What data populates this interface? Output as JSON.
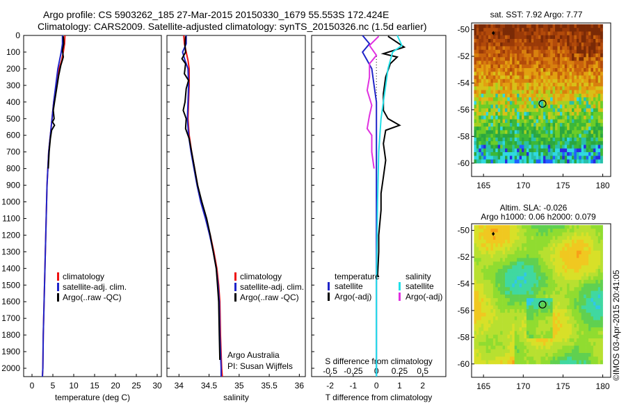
{
  "header": {
    "line1": "Argo profile: CS 5903262_185 27-Mar-2015 20150330_1679 55.553S 172.424E",
    "line2": "Climatology: CARS2009. Satellite-adjusted climatology: synTS_20150326.nc (1.5d earlier)"
  },
  "credit": "©IMOS 03-Apr-2015 20:41:05",
  "colors": {
    "red": "#ee1111",
    "blue": "#1f24c8",
    "black": "#000000",
    "cyan": "#22e0e8",
    "magenta": "#e030e0"
  },
  "chart_data": [
    {
      "id": "temperature",
      "type": "line",
      "xlabel": "temperature (deg C)",
      "ylabel": "",
      "xlim": [
        -2,
        31
      ],
      "ylim": [
        2050,
        0
      ],
      "xticks": [
        0,
        5,
        10,
        15,
        20,
        25,
        30
      ],
      "yticks": [
        0,
        100,
        200,
        300,
        400,
        500,
        600,
        700,
        800,
        900,
        1000,
        1100,
        1200,
        1300,
        1400,
        1500,
        1600,
        1700,
        1800,
        1900,
        2000
      ],
      "legend": {
        "placement": "lower-middle",
        "entries": [
          "climatology",
          "satellite-adj. clim.",
          "Argo(..raw -QC)"
        ]
      },
      "series": [
        {
          "name": "climatology",
          "color": "red",
          "points": [
            [
              7.9,
              0
            ],
            [
              7.8,
              50
            ],
            [
              7.5,
              100
            ],
            [
              7.1,
              150
            ],
            [
              6.5,
              200
            ],
            [
              5.8,
              300
            ],
            [
              5.2,
              400
            ],
            [
              4.8,
              500
            ],
            [
              4.4,
              600
            ],
            [
              4.0,
              700
            ],
            [
              3.8,
              800
            ],
            [
              3.6,
              900
            ],
            [
              3.5,
              1000
            ],
            [
              3.3,
              1200
            ],
            [
              3.1,
              1400
            ],
            [
              2.9,
              1600
            ],
            [
              2.7,
              1800
            ],
            [
              2.6,
              2000
            ],
            [
              2.5,
              2050
            ]
          ]
        },
        {
          "name": "satellite-adj. clim.",
          "color": "blue",
          "points": [
            [
              7.3,
              0
            ],
            [
              7.3,
              50
            ],
            [
              7.0,
              100
            ],
            [
              6.6,
              150
            ],
            [
              6.2,
              200
            ],
            [
              5.7,
              300
            ],
            [
              5.2,
              400
            ],
            [
              4.8,
              500
            ],
            [
              4.4,
              600
            ],
            [
              4.0,
              700
            ],
            [
              3.8,
              800
            ],
            [
              3.6,
              900
            ],
            [
              3.5,
              1000
            ],
            [
              3.3,
              1200
            ],
            [
              3.1,
              1400
            ],
            [
              2.9,
              1600
            ],
            [
              2.7,
              1800
            ],
            [
              2.6,
              2000
            ],
            [
              2.5,
              2050
            ]
          ]
        },
        {
          "name": "Argo(..raw -QC)",
          "color": "black",
          "points": [
            [
              7.5,
              5
            ],
            [
              7.6,
              50
            ],
            [
              7.3,
              90
            ],
            [
              7.5,
              130
            ],
            [
              6.9,
              180
            ],
            [
              6.4,
              240
            ],
            [
              5.9,
              320
            ],
            [
              5.4,
              400
            ],
            [
              5.1,
              450
            ],
            [
              5.3,
              500
            ],
            [
              4.9,
              520
            ],
            [
              5.4,
              540
            ],
            [
              4.7,
              570
            ],
            [
              4.4,
              620
            ],
            [
              4.1,
              700
            ],
            [
              3.9,
              800
            ]
          ]
        }
      ]
    },
    {
      "id": "salinity",
      "type": "line",
      "xlabel": "salinity",
      "ylabel": "",
      "xlim": [
        33.8,
        36.1
      ],
      "ylim": [
        2050,
        0
      ],
      "xticks": [
        34,
        34.5,
        35,
        35.5,
        36
      ],
      "legend": {
        "placement": "lower-middle",
        "entries": [
          "climatology",
          "satellite-adj. clim.",
          "Argo(..raw -QC)"
        ]
      },
      "annotations": [
        "Argo Australia",
        "PI: Susan Wijffels"
      ],
      "series": [
        {
          "name": "climatology",
          "color": "red",
          "points": [
            [
              34.08,
              0
            ],
            [
              34.09,
              50
            ],
            [
              34.12,
              100
            ],
            [
              34.15,
              150
            ],
            [
              34.17,
              200
            ],
            [
              34.17,
              300
            ],
            [
              34.16,
              400
            ],
            [
              34.15,
              500
            ],
            [
              34.17,
              600
            ],
            [
              34.21,
              700
            ],
            [
              34.26,
              800
            ],
            [
              34.31,
              900
            ],
            [
              34.37,
              1000
            ],
            [
              34.45,
              1100
            ],
            [
              34.52,
              1200
            ],
            [
              34.58,
              1300
            ],
            [
              34.63,
              1400
            ],
            [
              34.66,
              1500
            ],
            [
              34.68,
              1600
            ],
            [
              34.69,
              1800
            ],
            [
              34.71,
              2000
            ],
            [
              34.72,
              2050
            ]
          ]
        },
        {
          "name": "satellite-adj. clim.",
          "color": "blue",
          "points": [
            [
              34.12,
              0
            ],
            [
              34.12,
              50
            ],
            [
              34.06,
              100
            ],
            [
              34.1,
              150
            ],
            [
              34.15,
              200
            ],
            [
              34.16,
              300
            ],
            [
              34.15,
              400
            ],
            [
              34.14,
              500
            ],
            [
              34.16,
              600
            ],
            [
              34.2,
              700
            ],
            [
              34.25,
              800
            ],
            [
              34.3,
              900
            ],
            [
              34.36,
              1000
            ],
            [
              34.44,
              1100
            ],
            [
              34.51,
              1200
            ],
            [
              34.57,
              1300
            ],
            [
              34.62,
              1400
            ],
            [
              34.65,
              1500
            ],
            [
              34.67,
              1600
            ],
            [
              34.68,
              1800
            ],
            [
              34.7,
              2000
            ],
            [
              34.7,
              2050
            ]
          ]
        },
        {
          "name": "Argo(..raw -QC)",
          "color": "black",
          "points": [
            [
              34.11,
              5
            ],
            [
              34.1,
              60
            ],
            [
              34.11,
              100
            ],
            [
              34.05,
              140
            ],
            [
              34.11,
              170
            ],
            [
              34.09,
              230
            ],
            [
              34.16,
              270
            ],
            [
              34.12,
              320
            ],
            [
              34.1,
              400
            ],
            [
              34.07,
              450
            ],
            [
              34.12,
              500
            ],
            [
              34.11,
              560
            ],
            [
              34.17,
              620
            ],
            [
              34.21,
              700
            ],
            [
              34.26,
              800
            ],
            [
              34.31,
              900
            ],
            [
              34.38,
              1000
            ],
            [
              34.46,
              1100
            ],
            [
              34.52,
              1200
            ],
            [
              34.57,
              1300
            ],
            [
              34.62,
              1400
            ],
            [
              34.64,
              1500
            ],
            [
              34.66,
              1600
            ],
            [
              34.67,
              1800
            ],
            [
              34.68,
              1950
            ]
          ]
        }
      ]
    },
    {
      "id": "differences",
      "type": "line",
      "xlabel": "T difference from climatology",
      "xlabel_top": "S difference from climatology",
      "xlim": [
        -2.8,
        3.0
      ],
      "ylim": [
        2050,
        0
      ],
      "xticks": [
        -2,
        -1,
        0,
        1,
        2
      ],
      "sticks": [
        -0.5,
        -0.25,
        0,
        0.25,
        0.5
      ],
      "legend": {
        "placement": "lower-middle",
        "temperature": {
          "title": "temperature",
          "entries": [
            "satellite",
            "Argo(-adj)"
          ]
        },
        "salinity": {
          "title": "salinity",
          "entries": [
            "satellite",
            "Argo(-adj)"
          ]
        }
      },
      "series": [
        {
          "name": "T satellite",
          "color": "blue",
          "points": [
            [
              -0.6,
              0
            ],
            [
              -0.3,
              50
            ],
            [
              -0.6,
              100
            ],
            [
              -0.4,
              150
            ],
            [
              -0.2,
              200
            ],
            [
              -0.1,
              300
            ],
            [
              0,
              400
            ],
            [
              0,
              700
            ],
            [
              0,
              2050
            ]
          ]
        },
        {
          "name": "T Argo(-adj)",
          "color": "black",
          "points": [
            [
              0.5,
              5
            ],
            [
              1.2,
              70
            ],
            [
              0.3,
              110
            ],
            [
              0.9,
              130
            ],
            [
              0.6,
              170
            ],
            [
              0.4,
              250
            ],
            [
              0.3,
              350
            ],
            [
              0.3,
              450
            ],
            [
              0.5,
              500
            ],
            [
              1.0,
              540
            ],
            [
              0.4,
              570
            ],
            [
              0.3,
              650
            ],
            [
              0.4,
              750
            ],
            [
              0.3,
              850
            ],
            [
              0.2,
              950
            ],
            [
              0.2,
              1050
            ],
            [
              0.1,
              1200
            ],
            [
              0.1,
              1300
            ],
            [
              0.05,
              1450
            ]
          ]
        },
        {
          "name": "S satellite",
          "color": "cyan",
          "points": [
            [
              0.9,
              0
            ],
            [
              1.1,
              60
            ],
            [
              0.7,
              100
            ],
            [
              0.5,
              200
            ],
            [
              0.4,
              300
            ],
            [
              0.2,
              500
            ],
            [
              0.1,
              700
            ],
            [
              0.05,
              1000
            ],
            [
              0,
              1500
            ],
            [
              0,
              2050
            ]
          ]
        },
        {
          "name": "S Argo(-adj)",
          "color": "magenta",
          "points": [
            [
              0.1,
              5
            ],
            [
              -0.3,
              60
            ],
            [
              0.0,
              120
            ],
            [
              -0.3,
              170
            ],
            [
              -0.3,
              250
            ],
            [
              -0.4,
              330
            ],
            [
              -0.2,
              420
            ],
            [
              -0.3,
              480
            ],
            [
              -0.4,
              560
            ],
            [
              -0.2,
              600
            ],
            [
              -0.2,
              700
            ],
            [
              -0.1,
              800
            ]
          ]
        }
      ]
    },
    {
      "id": "sst-map",
      "type": "heatmap",
      "title": "sat. SST: 7.92 Argo: 7.77",
      "xlim": [
        163.5,
        181
      ],
      "ylim": [
        -61,
        -49.5
      ],
      "xticks": [
        165,
        170,
        175,
        180
      ],
      "yticks": [
        -50,
        -52,
        -54,
        -56,
        -58,
        -60
      ],
      "marker": {
        "lon": 172.424,
        "lat": -55.553
      }
    },
    {
      "id": "sla-map",
      "type": "heatmap",
      "title": "Altim. SLA: -0.026",
      "subtitle": "Argo h1000: 0.06 h2000: 0.079",
      "xlim": [
        163.5,
        181
      ],
      "ylim": [
        -61,
        -49.5
      ],
      "xticks": [
        165,
        170,
        175,
        180
      ],
      "yticks": [
        -50,
        -52,
        -54,
        -56,
        -58,
        -60
      ],
      "marker": {
        "lon": 172.424,
        "lat": -55.553
      }
    }
  ]
}
